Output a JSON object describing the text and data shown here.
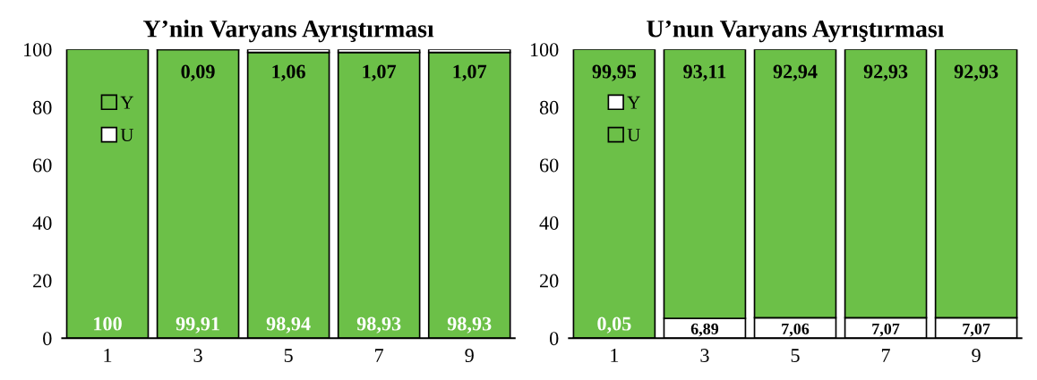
{
  "chart_data": [
    {
      "type": "bar",
      "title": "Y’nin Varyans Ayrıştırması",
      "categories": [
        "1",
        "3",
        "5",
        "7",
        "9"
      ],
      "stacked": true,
      "ylim": [
        0,
        100
      ],
      "yticks": [
        0,
        20,
        40,
        60,
        80,
        100
      ],
      "grid": false,
      "legend": "top left",
      "series": [
        {
          "name": "Y",
          "color": "#6cc048",
          "values": [
            100,
            99.91,
            98.94,
            98.93,
            98.93
          ],
          "value_labels": [
            "100",
            "99,91",
            "98,94",
            "98,93",
            "98,93"
          ]
        },
        {
          "name": "U",
          "color": "#ffffff",
          "values": [
            0,
            0.09,
            1.06,
            1.07,
            1.07
          ],
          "value_labels": [
            null,
            "0,09",
            "1,06",
            "1,07",
            "1,07"
          ]
        }
      ]
    },
    {
      "type": "bar",
      "title": "U’nun Varyans Ayrıştırması",
      "categories": [
        "1",
        "3",
        "5",
        "7",
        "9"
      ],
      "stacked": true,
      "ylim": [
        0,
        100
      ],
      "yticks": [
        0,
        20,
        40,
        60,
        80,
        100
      ],
      "grid": false,
      "legend": "top left",
      "series": [
        {
          "name": "Y",
          "color": "#ffffff",
          "values": [
            0.05,
            6.89,
            7.06,
            7.07,
            7.07
          ],
          "value_labels": [
            "0,05",
            "6,89",
            "7,06",
            "7,07",
            "7,07"
          ]
        },
        {
          "name": "U",
          "color": "#6cc048",
          "values": [
            99.95,
            93.11,
            92.94,
            92.93,
            92.93
          ],
          "value_labels": [
            "99,95",
            "93,11",
            "92,94",
            "92,93",
            "92,93"
          ]
        }
      ]
    }
  ]
}
